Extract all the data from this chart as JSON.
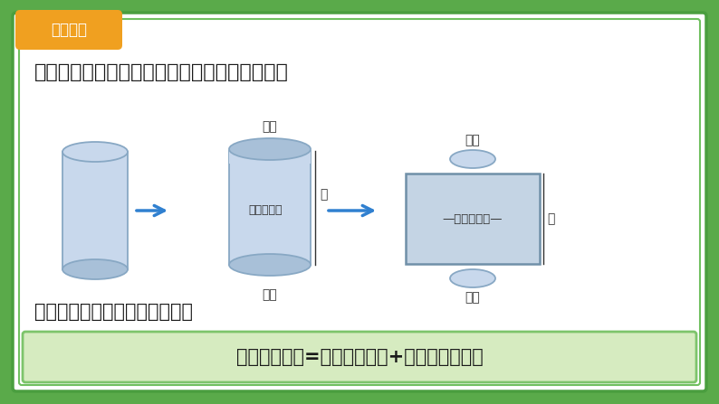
{
  "bg_outer": "#4a9e3f",
  "bg_inner": "#6ab85a",
  "bg_white": "#ffffff",
  "border_color_outer": "#3a8030",
  "border_color_inner": "#70c060",
  "title_text": "在前面的学习中，我们已经知道圆柱的展开图。",
  "question_text": "仔细观察上图，你能发现什么？",
  "formula_text": "圆柱的表面积=圆柱的侧面积+两个底面的面积",
  "badge_text": "探究新知",
  "badge_bg": "#f0a020",
  "formula_bg": "#d6ebc0",
  "formula_border": "#7dc46b",
  "cyl_light": "#c8d8ec",
  "cyl_mid": "#a8c0d8",
  "cyl_dark": "#88a8c4",
  "arrow_color": "#3080d0",
  "text_color": "#1a1a1a",
  "label_color": "#333333",
  "rect_fill": "#c4d4e4",
  "rect_border": "#7090a8"
}
